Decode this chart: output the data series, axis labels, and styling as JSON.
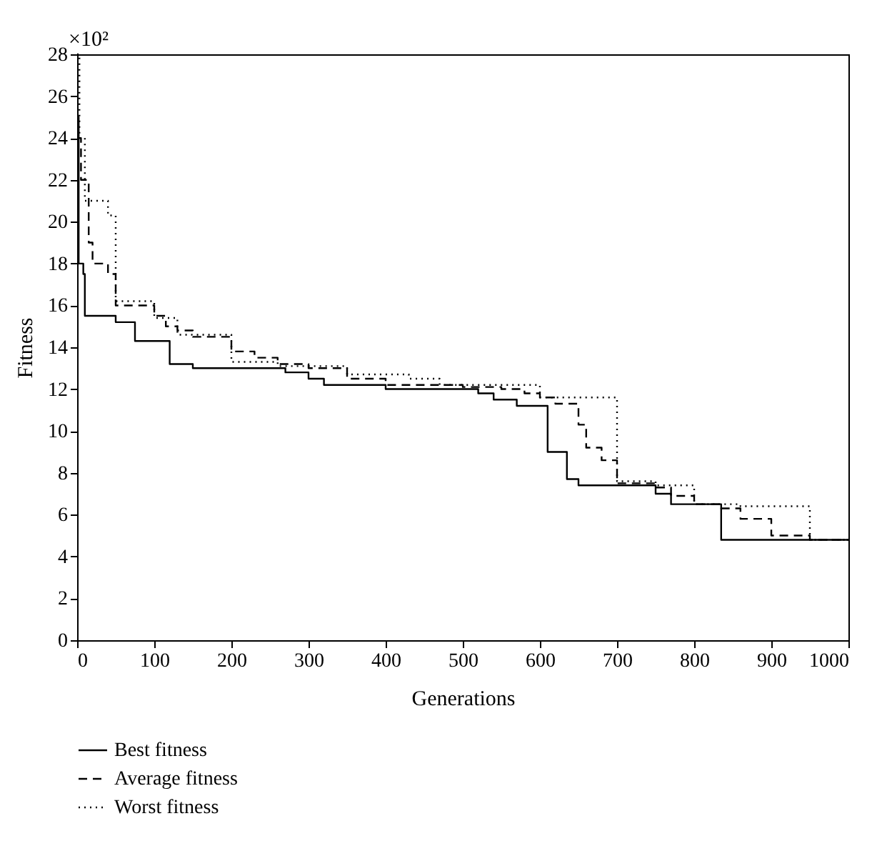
{
  "chart_data": {
    "type": "step",
    "xlabel": "Generations",
    "ylabel": "Fitness",
    "annotations": [
      "×10²"
    ],
    "xlim": [
      0,
      1000
    ],
    "xticks": [
      0,
      100,
      200,
      300,
      400,
      500,
      600,
      700,
      800,
      900,
      1000
    ],
    "ylim": [
      0,
      28
    ],
    "yticks": [
      0,
      2,
      4,
      6,
      8,
      10,
      12,
      14,
      16,
      18,
      20,
      22,
      24,
      26,
      28
    ],
    "grid": false,
    "legend": "bottom",
    "marker": "none",
    "series": [
      {
        "name": "Best fitness",
        "color": "#000000",
        "line_style": "solid",
        "x": [
          0,
          2,
          8,
          10,
          50,
          75,
          120,
          150,
          270,
          300,
          320,
          400,
          520,
          540,
          570,
          610,
          635,
          650,
          750,
          770,
          835,
          1000
        ],
        "values": [
          25,
          18,
          17.5,
          15.5,
          15.2,
          14.3,
          13.2,
          13.0,
          12.8,
          12.5,
          12.2,
          12.0,
          11.8,
          11.5,
          11.2,
          9.0,
          7.7,
          7.4,
          7.0,
          6.5,
          4.8,
          4.8
        ]
      },
      {
        "name": "Average fitness",
        "color": "#000000",
        "line_style": "dashed",
        "x": [
          0,
          5,
          15,
          20,
          40,
          50,
          100,
          115,
          130,
          150,
          200,
          230,
          260,
          300,
          350,
          400,
          500,
          550,
          580,
          600,
          620,
          650,
          660,
          680,
          700,
          750,
          770,
          800,
          835,
          860,
          900,
          950,
          1000
        ],
        "values": [
          24,
          22,
          19,
          18,
          17.5,
          16,
          15.5,
          15,
          14.8,
          14.5,
          13.8,
          13.5,
          13.2,
          13,
          12.5,
          12.2,
          12.1,
          12,
          11.8,
          11.6,
          11.3,
          10.3,
          9.2,
          8.6,
          7.5,
          7.3,
          6.9,
          6.5,
          6.3,
          5.8,
          5.0,
          4.8,
          4.8
        ]
      },
      {
        "name": "Worst fitness",
        "color": "#000000",
        "line_style": "dotted",
        "x": [
          0,
          3,
          10,
          40,
          50,
          100,
          130,
          200,
          260,
          350,
          430,
          470,
          600,
          700,
          750,
          800,
          860,
          950,
          1000
        ],
        "values": [
          28,
          24,
          21,
          20.3,
          16.2,
          15.4,
          14.6,
          13.3,
          13.1,
          12.7,
          12.5,
          12.2,
          11.6,
          7.6,
          7.4,
          6.5,
          6.4,
          4.8,
          4.8
        ]
      }
    ]
  }
}
